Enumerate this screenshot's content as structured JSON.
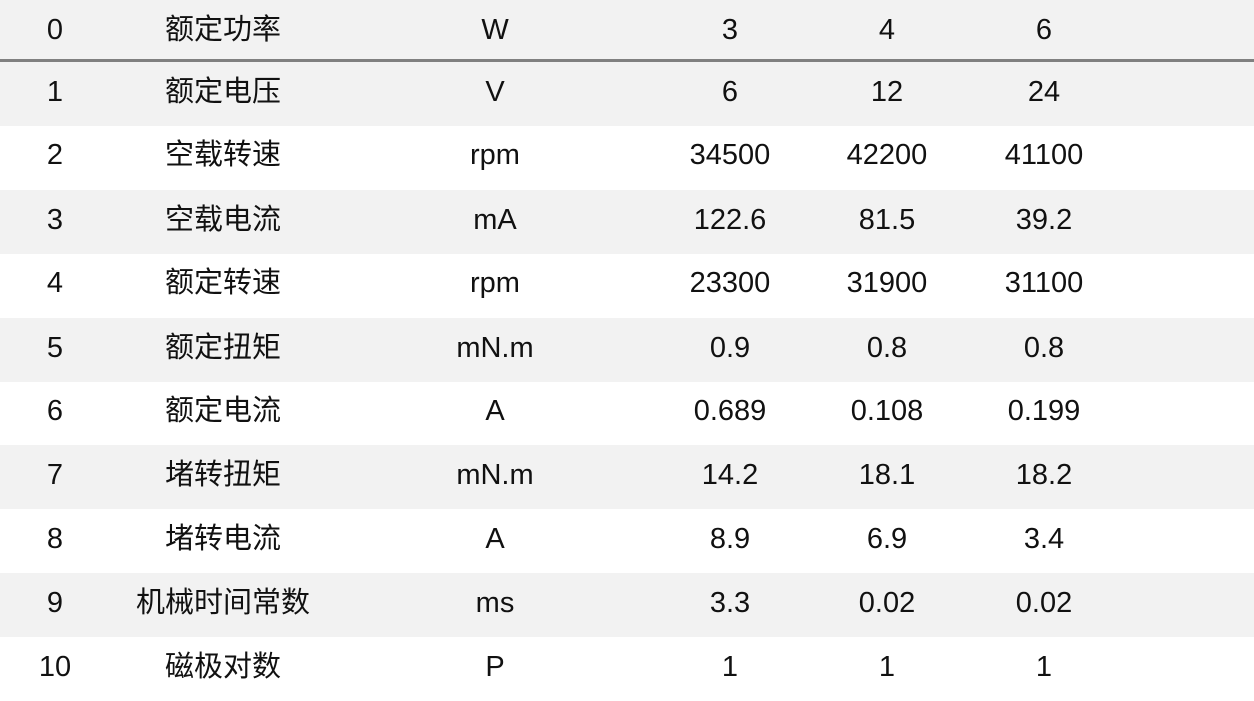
{
  "table": {
    "rows": [
      [
        "0",
        "额定功率",
        "W",
        "3",
        "4",
        "6"
      ],
      [
        "1",
        "额定电压",
        "V",
        "6",
        "12",
        "24"
      ],
      [
        "2",
        "空载转速",
        "rpm",
        "34500",
        "42200",
        "41100"
      ],
      [
        "3",
        "空载电流",
        "mA",
        "122.6",
        "81.5",
        "39.2"
      ],
      [
        "4",
        "额定转速",
        "rpm",
        "23300",
        "31900",
        "31100"
      ],
      [
        "5",
        "额定扭矩",
        "mN.m",
        "0.9",
        "0.8",
        "0.8"
      ],
      [
        "6",
        "额定电流",
        "A",
        "0.689",
        "0.108",
        "0.199"
      ],
      [
        "7",
        "堵转扭矩",
        "mN.m",
        "14.2",
        "18.1",
        "18.2"
      ],
      [
        "8",
        "堵转电流",
        "A",
        "8.9",
        "6.9",
        "3.4"
      ],
      [
        "9",
        "机械时间常数",
        "ms",
        "3.3",
        "0.02",
        "0.02"
      ],
      [
        "10",
        "磁极对数",
        "P",
        "1",
        "1",
        "1"
      ]
    ]
  },
  "colors": {
    "stripe": "#f2f2f2",
    "header_rule": "#808080"
  }
}
